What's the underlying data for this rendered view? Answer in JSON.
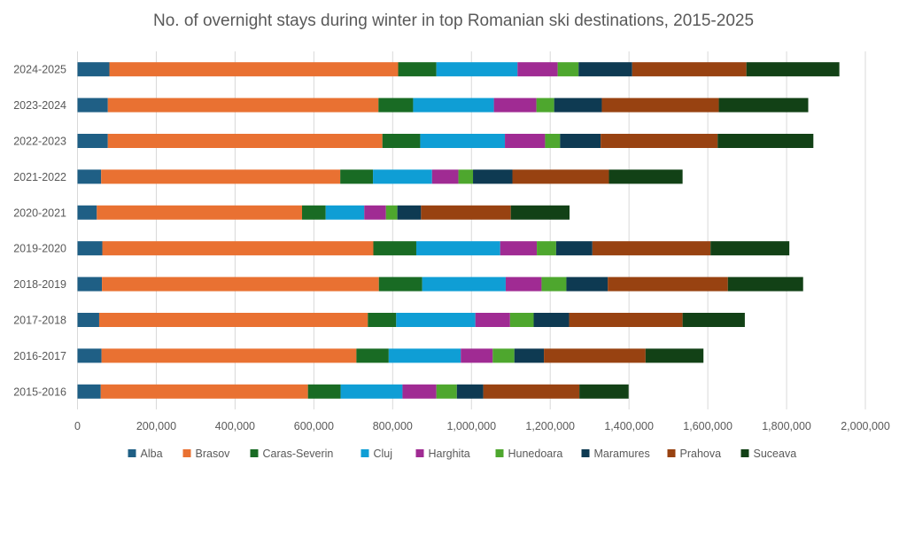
{
  "chart_data": {
    "type": "bar",
    "orientation": "horizontal",
    "stacked": true,
    "title": "No. of overnight stays during winter in top Romanian ski destinations, 2015-2025",
    "xlabel": "",
    "ylabel": "",
    "xlim": [
      0,
      2000000
    ],
    "x_ticks": [
      "0",
      "200,000",
      "400,000",
      "600,000",
      "800,000",
      "1,000,000",
      "1,200,000",
      "1,400,000",
      "1,600,000",
      "1,800,000",
      "2,000,000"
    ],
    "grid": true,
    "legend_position": "bottom",
    "categories": [
      "2024-2025",
      "2023-2024",
      "2022-2023",
      "2021-2022",
      "2020-2021",
      "2019-2020",
      "2018-2019",
      "2017-2018",
      "2016-2017",
      "2015-2016"
    ],
    "series": [
      {
        "name": "Alba",
        "color": "#1F5F85",
        "values": [
          81000,
          77000,
          77000,
          60000,
          49000,
          63000,
          62000,
          55000,
          61000,
          59000
        ]
      },
      {
        "name": "Brasov",
        "color": "#E97132",
        "values": [
          733000,
          687000,
          697000,
          607000,
          521000,
          688000,
          703000,
          682000,
          647000,
          526000
        ]
      },
      {
        "name": "Caras-Severin",
        "color": "#196B24",
        "values": [
          97000,
          88000,
          96000,
          83000,
          60000,
          109000,
          110000,
          72000,
          82000,
          83000
        ]
      },
      {
        "name": "Cluj",
        "color": "#0F9ED5",
        "values": [
          206000,
          205000,
          215000,
          150000,
          98000,
          213000,
          212000,
          201000,
          183000,
          157000
        ]
      },
      {
        "name": "Harghita",
        "color": "#A02B93",
        "values": [
          102000,
          108000,
          102000,
          67000,
          55000,
          93000,
          91000,
          88000,
          81000,
          86000
        ]
      },
      {
        "name": "Hunedoara",
        "color": "#4EA72E",
        "values": [
          53000,
          45000,
          38000,
          37000,
          29000,
          49000,
          63000,
          60000,
          55000,
          52000
        ]
      },
      {
        "name": "Maramures",
        "color": "#0E3A52",
        "values": [
          136000,
          121000,
          103000,
          100000,
          60000,
          92000,
          105000,
          90000,
          75000,
          67000
        ]
      },
      {
        "name": "Prahova",
        "color": "#984211",
        "values": [
          290000,
          297000,
          297000,
          245000,
          228000,
          300000,
          305000,
          288000,
          258000,
          244000
        ]
      },
      {
        "name": "Suceava",
        "color": "#124116",
        "values": [
          236000,
          227000,
          243000,
          187000,
          149000,
          200000,
          191000,
          158000,
          147000,
          125000
        ]
      }
    ]
  }
}
